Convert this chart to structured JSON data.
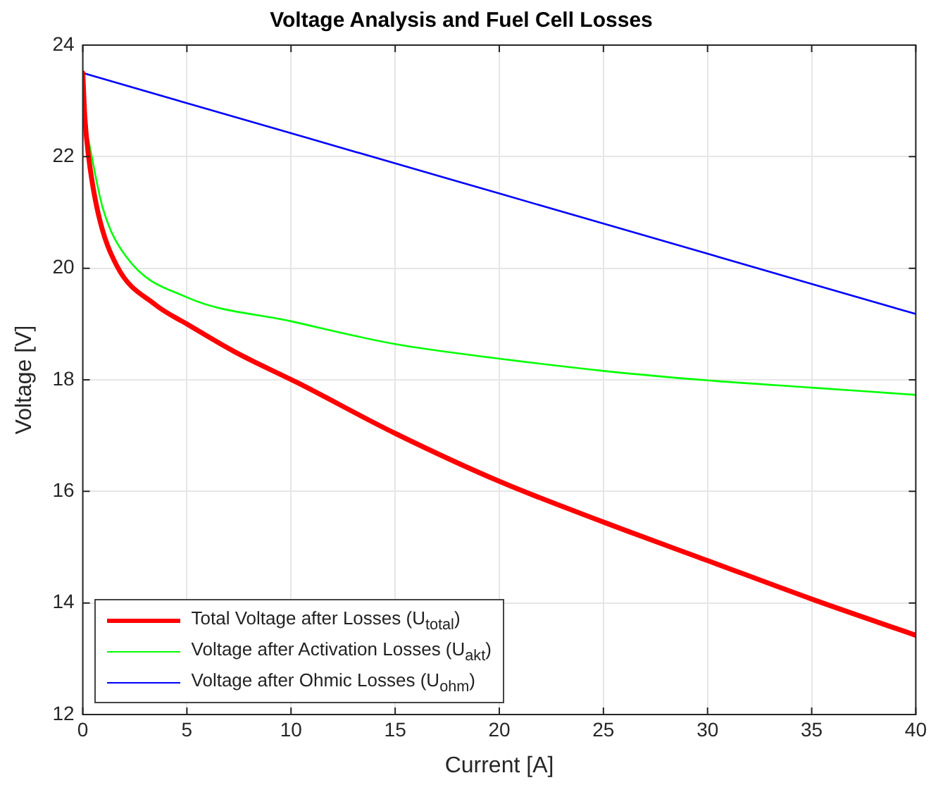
{
  "chart_data": {
    "type": "line",
    "title": "Voltage Analysis and Fuel Cell Losses",
    "xlabel": "Current [A]",
    "ylabel": "Voltage [V]",
    "xlim": [
      0,
      40
    ],
    "xticks": [
      0,
      5,
      10,
      15,
      20,
      25,
      30,
      35,
      40
    ],
    "ylim": [
      12,
      24
    ],
    "yticks": [
      12,
      14,
      16,
      18,
      20,
      22,
      24
    ],
    "grid": true,
    "legend": "bottom left",
    "marker": "none",
    "line_style": "solid",
    "series": [
      {
        "name": "Total Voltage after Losses (U$_{total}$)",
        "color": "#ff0000",
        "x": [
          0,
          0.1,
          0.27,
          0.73,
          1.64,
          3.47,
          5,
          7.35,
          10.3,
          15,
          20,
          25,
          30,
          35,
          40
        ],
        "values": [
          23.5,
          22.7,
          22.03,
          21.0,
          20.04,
          19.35,
          19.0,
          18.49,
          17.95,
          17.04,
          16.18,
          15.45,
          14.76,
          14.07,
          13.42
        ]
      },
      {
        "name": "Voltage after Activation Losses (U$_{akt}$)",
        "color": "#00ff00",
        "x": [
          0.27,
          0.96,
          2.1,
          5,
          10,
          15,
          20,
          25,
          30,
          35,
          40
        ],
        "values": [
          22.3,
          21.08,
          20.2,
          19.48,
          19.05,
          18.64,
          18.38,
          18.16,
          17.99,
          17.86,
          17.73
        ]
      },
      {
        "name": "Voltage after Ohmic Losses (U$_{ohm}$)",
        "color": "#0000ff",
        "x": [
          0,
          10,
          20,
          30,
          40
        ],
        "values": [
          23.5,
          22.42,
          21.34,
          20.26,
          19.18
        ]
      }
    ]
  }
}
